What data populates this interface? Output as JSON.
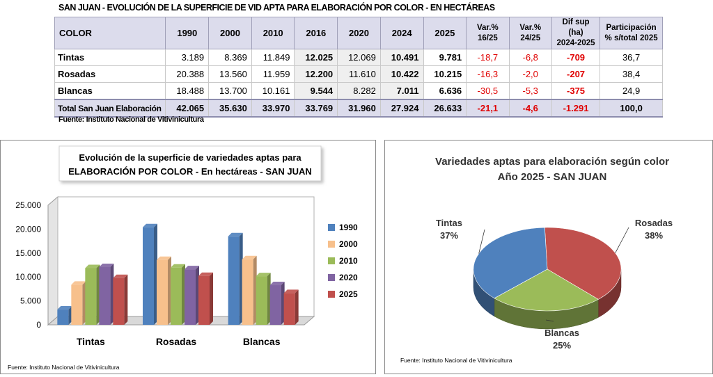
{
  "table": {
    "title": "SAN JUAN - EVOLUCIÓN DE LA SUPERFICIE DE VID APTA PARA ELABORACIÓN POR COLOR - EN HECTÁREAS",
    "headers": {
      "color": "COLOR",
      "years": [
        "1990",
        "2000",
        "2010",
        "2016",
        "2020",
        "2024",
        "2025"
      ],
      "var1": [
        "Var.%",
        "16/25"
      ],
      "var2": [
        "Var.%",
        "24/25"
      ],
      "dif": [
        "Dif sup (ha)",
        "2024-2025"
      ],
      "part": [
        "Participación",
        "% s/total 2025"
      ]
    },
    "rows": [
      {
        "color": "Tintas",
        "values": [
          "3.189",
          "8.369",
          "11.849",
          "12.025",
          "12.069",
          "10.491",
          "9.781"
        ],
        "var1": "-18,7",
        "var2": "-6,8",
        "dif": "-709",
        "part": "36,7"
      },
      {
        "color": "Rosadas",
        "values": [
          "20.388",
          "13.560",
          "11.959",
          "12.200",
          "11.610",
          "10.422",
          "10.215"
        ],
        "var1": "-16,3",
        "var2": "-2,0",
        "dif": "-207",
        "part": "38,4"
      },
      {
        "color": "Blancas",
        "values": [
          "18.488",
          "13.700",
          "10.161",
          "9.544",
          "8.282",
          "7.011",
          "6.636"
        ],
        "var1": "-30,5",
        "var2": "-5,3",
        "dif": "-375",
        "part": "24,9"
      }
    ],
    "total": {
      "color": "Total San Juan Elaboración",
      "values": [
        "42.065",
        "35.630",
        "33.970",
        "33.769",
        "31.960",
        "27.924",
        "26.633"
      ],
      "var1": "-21,1",
      "var2": "-4,6",
      "dif": "-1.291",
      "part": "100,0"
    },
    "source": "Fuente: Instituto Nacional de Vitivinicultura"
  },
  "chart_data": [
    {
      "type": "bar",
      "title": [
        "Evolución de la superficie de variedades aptas para",
        "ELABORACIÓN POR COLOR - En hectáreas - SAN JUAN"
      ],
      "categories": [
        "Tintas",
        "Rosadas",
        "Blancas"
      ],
      "series": [
        {
          "name": "1990",
          "values": [
            3189,
            20388,
            18488
          ],
          "color": "#4f81bd"
        },
        {
          "name": "2000",
          "values": [
            8369,
            13560,
            13700
          ],
          "color": "#f7c08c"
        },
        {
          "name": "2010",
          "values": [
            11849,
            11959,
            10161
          ],
          "color": "#9bbb59"
        },
        {
          "name": "2020",
          "values": [
            12069,
            11610,
            8282
          ],
          "color": "#8064a2"
        },
        {
          "name": "2025",
          "values": [
            9781,
            10215,
            6636
          ],
          "color": "#c0504d"
        }
      ],
      "ylim": [
        0,
        25000
      ],
      "yticks": [
        "0",
        "5.000",
        "10.000",
        "15.000",
        "20.000",
        "25.000"
      ],
      "legend": "right",
      "grid": false,
      "source": "Fuente: Instituto Nacional de Vitivinicultura"
    },
    {
      "type": "pie",
      "title": [
        "Variedades aptas para elaboración según color",
        "Año 2025 - SAN JUAN"
      ],
      "slices": [
        {
          "label": "Tintas",
          "pct_label": "37%",
          "value": 36.7,
          "color": "#4f81bd"
        },
        {
          "label": "Rosadas",
          "pct_label": "38%",
          "value": 38.4,
          "color": "#c0504d"
        },
        {
          "label": "Blancas",
          "pct_label": "25%",
          "value": 24.9,
          "color": "#9bbb59"
        }
      ],
      "source": "Fuente: Instituto Nacional de Vitivinicultura"
    }
  ]
}
